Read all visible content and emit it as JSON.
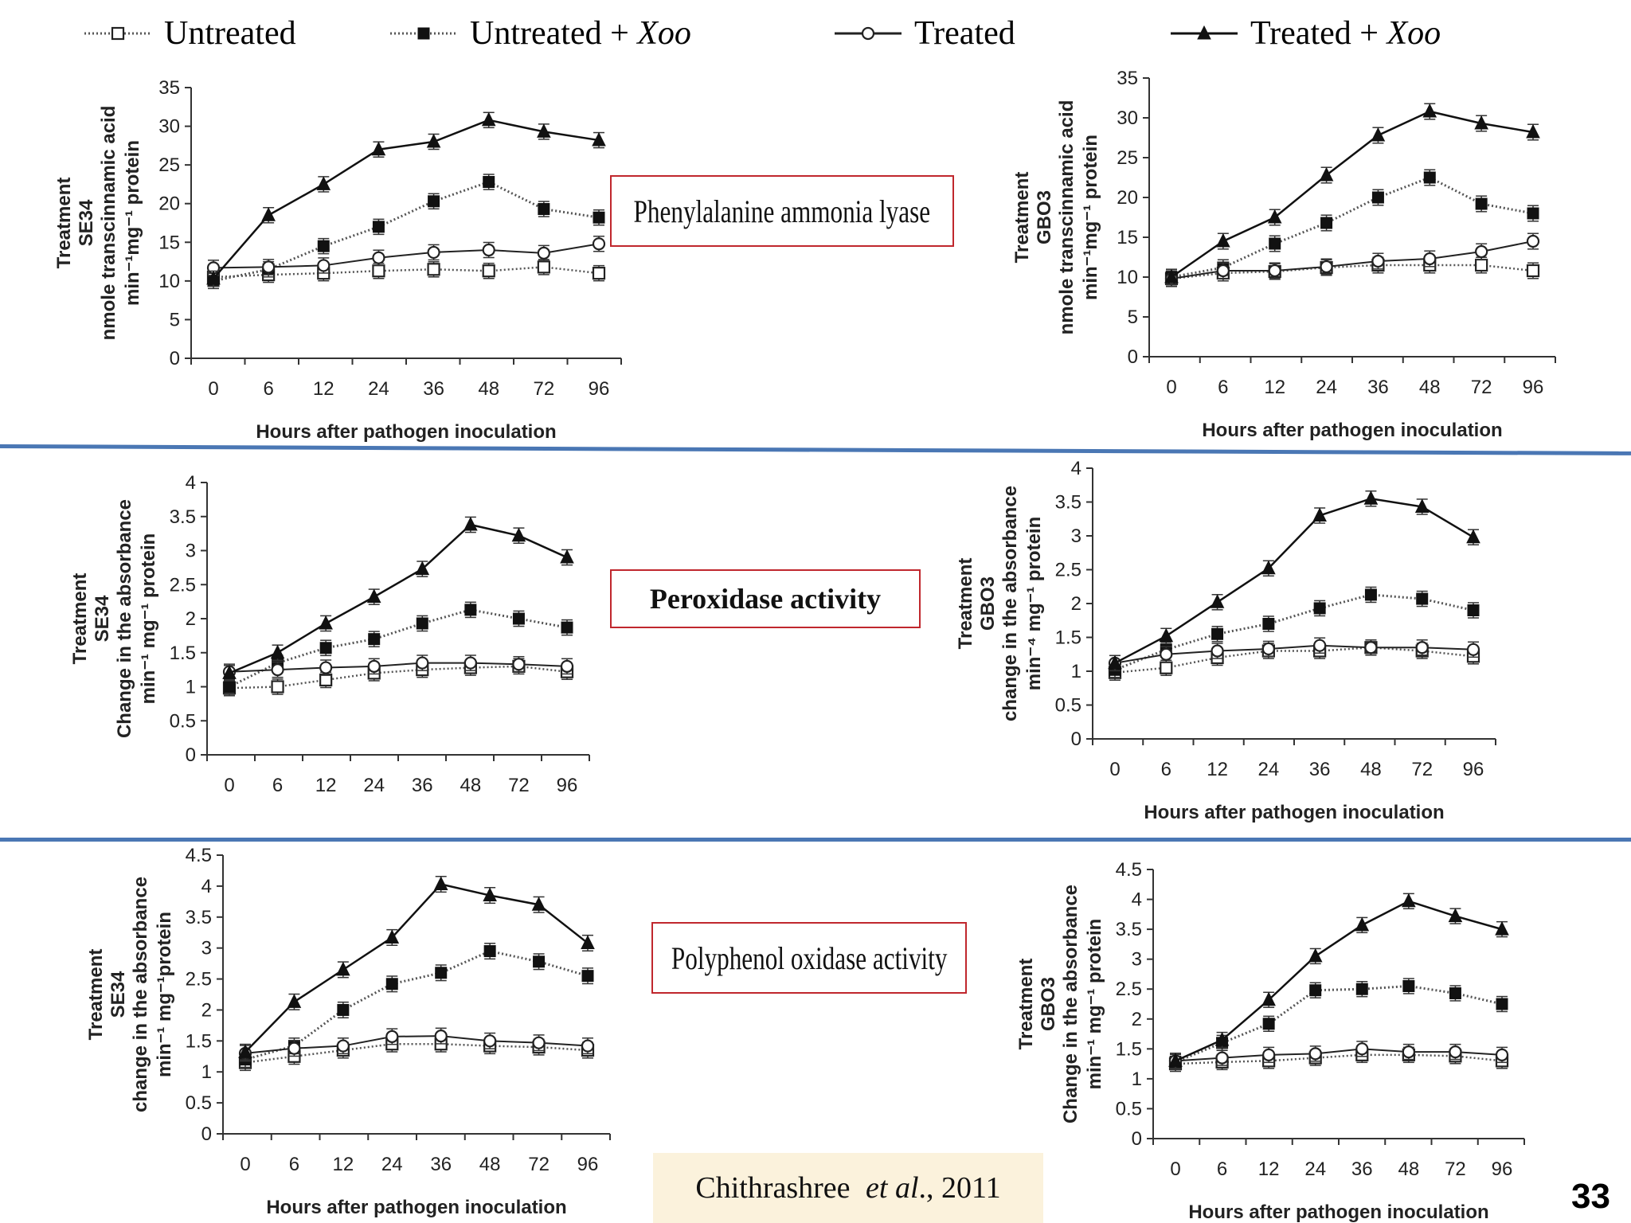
{
  "legend": {
    "items": [
      {
        "label": "Untreated",
        "italic": "",
        "marker": "open-square",
        "line": "dotted"
      },
      {
        "label": "Untreated + ",
        "italic": "Xoo",
        "marker": "filled-square",
        "line": "dotted"
      },
      {
        "label": "Treated",
        "italic": "",
        "marker": "open-circle",
        "line": "solid"
      },
      {
        "label": "Treated + ",
        "italic": "Xoo",
        "marker": "filled-triangle",
        "line": "solid"
      }
    ]
  },
  "enzymes": {
    "pal": "Phenylalanine ammonia lyase",
    "pox": "Peroxidase activity",
    "ppo": "Polyphenol oxidase activity"
  },
  "citation": {
    "authors": "Chithrashree ",
    "etal": "et al",
    "rest": "., 2011"
  },
  "page_number": "33",
  "chart_data": [
    {
      "id": "pal-se34",
      "type": "line",
      "categories": [
        "0",
        "6",
        "12",
        "24",
        "36",
        "48",
        "72",
        "96"
      ],
      "xlabel": "Hours after pathogen inoculation",
      "ylabel": [
        "Treatment",
        "SE34",
        "nmole transcinnamic acid",
        "min⁻¹mg⁻¹ protein"
      ],
      "ylim": [
        0,
        35
      ],
      "yticks": [
        "0",
        "5",
        "10",
        "15",
        "20",
        "25",
        "30",
        "35"
      ],
      "series": [
        {
          "marker": "open-square",
          "values": [
            10.5,
            10.8,
            11.0,
            11.3,
            11.5,
            11.3,
            11.8,
            11.0
          ]
        },
        {
          "marker": "filled-square",
          "values": [
            10.0,
            11.5,
            14.5,
            17.0,
            20.3,
            22.8,
            19.3,
            18.2
          ]
        },
        {
          "marker": "open-circle",
          "values": [
            11.7,
            11.8,
            12.0,
            13.0,
            13.7,
            14.0,
            13.6,
            14.8
          ]
        },
        {
          "marker": "filled-triangle",
          "values": [
            10.3,
            18.5,
            22.5,
            27.0,
            28.0,
            30.8,
            29.3,
            28.2
          ]
        }
      ]
    },
    {
      "id": "pal-gbo3",
      "type": "line",
      "categories": [
        "0",
        "6",
        "12",
        "24",
        "36",
        "48",
        "72",
        "96"
      ],
      "xlabel": "Hours after pathogen inoculation",
      "ylabel": [
        "Treatment",
        "GBO3",
        "nmole transcinnamic acid",
        "min⁻¹mg⁻¹ protein"
      ],
      "ylim": [
        0,
        35
      ],
      "yticks": [
        "0",
        "5",
        "10",
        "15",
        "20",
        "25",
        "30",
        "35"
      ],
      "series": [
        {
          "marker": "open-square",
          "values": [
            9.8,
            10.5,
            10.7,
            11.2,
            11.5,
            11.5,
            11.5,
            10.8
          ]
        },
        {
          "marker": "filled-square",
          "values": [
            10.0,
            11.2,
            14.2,
            16.8,
            20.0,
            22.5,
            19.2,
            18.0
          ]
        },
        {
          "marker": "open-circle",
          "values": [
            9.8,
            10.8,
            10.8,
            11.3,
            12.0,
            12.3,
            13.2,
            14.5
          ]
        },
        {
          "marker": "filled-triangle",
          "values": [
            10.0,
            14.5,
            17.5,
            22.8,
            27.8,
            30.8,
            29.3,
            28.2
          ]
        }
      ]
    },
    {
      "id": "pox-se34",
      "type": "line",
      "categories": [
        "0",
        "6",
        "12",
        "24",
        "36",
        "48",
        "72",
        "96"
      ],
      "xlabel": "",
      "ylabel": [
        "Treatment",
        "SE34",
        "Change in the absorbance",
        "min⁻¹ mg⁻¹ protein"
      ],
      "ylim": [
        0,
        4
      ],
      "yticks": [
        "0",
        "0.5",
        "1",
        "1.5",
        "2",
        "2.5",
        "3",
        "3.5",
        "4"
      ],
      "series": [
        {
          "marker": "open-square",
          "values": [
            0.98,
            1.0,
            1.1,
            1.2,
            1.25,
            1.28,
            1.3,
            1.22
          ]
        },
        {
          "marker": "filled-square",
          "values": [
            1.0,
            1.35,
            1.57,
            1.7,
            1.93,
            2.13,
            2.0,
            1.87
          ]
        },
        {
          "marker": "open-circle",
          "values": [
            1.22,
            1.25,
            1.28,
            1.3,
            1.35,
            1.35,
            1.33,
            1.3
          ]
        },
        {
          "marker": "filled-triangle",
          "values": [
            1.2,
            1.5,
            1.93,
            2.32,
            2.73,
            3.38,
            3.22,
            2.9
          ]
        }
      ]
    },
    {
      "id": "pox-gbo3",
      "type": "line",
      "categories": [
        "0",
        "6",
        "12",
        "24",
        "36",
        "48",
        "72",
        "96"
      ],
      "xlabel": "Hours after pathogen inoculation",
      "ylabel": [
        "Treatment",
        "GBO3",
        "change in the absorbance",
        "min⁻⁴ mg⁻¹ protein"
      ],
      "ylim": [
        0,
        4
      ],
      "yticks": [
        "0",
        "0.5",
        "1",
        "1.5",
        "2",
        "2.5",
        "3",
        "3.5",
        "4"
      ],
      "series": [
        {
          "marker": "open-square",
          "values": [
            0.98,
            1.05,
            1.2,
            1.3,
            1.3,
            1.35,
            1.3,
            1.22
          ]
        },
        {
          "marker": "filled-square",
          "values": [
            1.02,
            1.32,
            1.55,
            1.7,
            1.93,
            2.13,
            2.07,
            1.9
          ]
        },
        {
          "marker": "open-circle",
          "values": [
            1.12,
            1.25,
            1.3,
            1.33,
            1.38,
            1.35,
            1.35,
            1.32
          ]
        },
        {
          "marker": "filled-triangle",
          "values": [
            1.12,
            1.52,
            2.02,
            2.52,
            3.3,
            3.55,
            3.43,
            2.98
          ]
        }
      ]
    },
    {
      "id": "ppo-se34",
      "type": "line",
      "categories": [
        "0",
        "6",
        "12",
        "24",
        "36",
        "48",
        "72",
        "96"
      ],
      "xlabel": "Hours after pathogen inoculation",
      "ylabel": [
        "Treatment",
        "SE34",
        "change in the absorbance",
        "min⁻¹ mg⁻¹protein"
      ],
      "ylim": [
        0,
        4.5
      ],
      "yticks": [
        "0",
        "0.5",
        "1",
        "1.5",
        "2",
        "2.5",
        "3",
        "3.5",
        "4",
        "4.5"
      ],
      "series": [
        {
          "marker": "open-square",
          "values": [
            1.15,
            1.25,
            1.35,
            1.45,
            1.45,
            1.42,
            1.4,
            1.35
          ]
        },
        {
          "marker": "filled-square",
          "values": [
            1.2,
            1.42,
            2.0,
            2.42,
            2.6,
            2.95,
            2.78,
            2.55
          ]
        },
        {
          "marker": "open-circle",
          "values": [
            1.3,
            1.38,
            1.42,
            1.57,
            1.58,
            1.5,
            1.47,
            1.42
          ]
        },
        {
          "marker": "filled-triangle",
          "values": [
            1.32,
            2.13,
            2.65,
            3.17,
            4.03,
            3.85,
            3.7,
            3.08
          ]
        }
      ]
    },
    {
      "id": "ppo-gbo3",
      "type": "line",
      "categories": [
        "0",
        "6",
        "12",
        "24",
        "36",
        "48",
        "72",
        "96"
      ],
      "xlabel": "Hours after pathogen inoculation",
      "ylabel": [
        "Treatment",
        "GBO3",
        "Change in the absorbance",
        "min⁻¹ mg⁻¹ protein"
      ],
      "ylim": [
        0,
        4.5
      ],
      "yticks": [
        "0",
        "0.5",
        "1",
        "1.5",
        "2",
        "2.5",
        "3",
        "3.5",
        "4",
        "4.5"
      ],
      "series": [
        {
          "marker": "open-square",
          "values": [
            1.25,
            1.28,
            1.3,
            1.35,
            1.4,
            1.4,
            1.38,
            1.3
          ]
        },
        {
          "marker": "filled-square",
          "values": [
            1.28,
            1.6,
            1.92,
            2.48,
            2.5,
            2.55,
            2.43,
            2.25
          ]
        },
        {
          "marker": "open-circle",
          "values": [
            1.3,
            1.35,
            1.4,
            1.42,
            1.5,
            1.45,
            1.45,
            1.4
          ]
        },
        {
          "marker": "filled-triangle",
          "values": [
            1.3,
            1.65,
            2.32,
            3.05,
            3.57,
            3.97,
            3.72,
            3.5
          ]
        }
      ]
    }
  ]
}
